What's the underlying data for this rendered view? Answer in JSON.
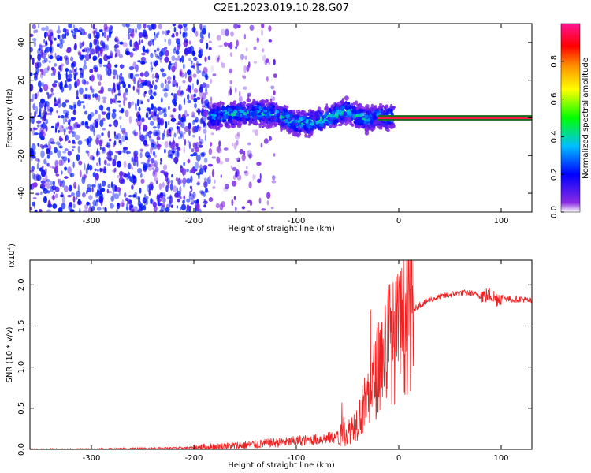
{
  "title": "C2E1.2023.019.10.28.G07",
  "chart_data": [
    {
      "type": "heatmap",
      "xlabel": "Height of straight line (km)",
      "ylabel": "Frequency (Hz)",
      "xlim": [
        -360,
        130
      ],
      "ylim": [
        -50,
        50
      ],
      "xticks": [
        -300,
        -200,
        -100,
        0,
        100
      ],
      "yticks": [
        -40,
        -20,
        0,
        20,
        40
      ],
      "colorbar": {
        "label": "Normalized spectral amplitude",
        "range": [
          0,
          1
        ],
        "ticks": [
          0.0,
          0.2,
          0.4,
          0.6,
          0.8
        ],
        "colors": [
          "#ffffff",
          "#8a2be2",
          "#0000ff",
          "#00bfff",
          "#00ff00",
          "#ffff00",
          "#ff8c00",
          "#ff0000",
          "#ff1493"
        ]
      },
      "regions": [
        {
          "x": [
            -360,
            -185
          ],
          "y": [
            -50,
            50
          ],
          "amplitude": 0.12,
          "pattern": "scattered noise"
        },
        {
          "x": [
            -185,
            -120
          ],
          "y": [
            -50,
            50
          ],
          "amplitude": 0.04,
          "pattern": "sparse noise"
        },
        {
          "x": [
            -185,
            -5
          ],
          "y": [
            -6,
            8
          ],
          "amplitude": 0.45,
          "pattern": "signal band"
        },
        {
          "x": [
            -20,
            130
          ],
          "y": [
            -1,
            1
          ],
          "amplitude": 0.9,
          "pattern": "carrier line"
        }
      ],
      "ridge": {
        "x": [
          -185,
          -160,
          -140,
          -120,
          -100,
          -80,
          -60,
          -50,
          -40,
          -30,
          -20,
          -10,
          0,
          10,
          130
        ],
        "y": [
          1,
          2,
          3,
          2,
          -3,
          -2,
          2,
          4,
          1,
          -1,
          1,
          0,
          1,
          0,
          0
        ]
      }
    },
    {
      "type": "line",
      "xlabel": "Height of straight line (km)",
      "ylabel": "SNR (10 * v/v)",
      "yscale_label": "(x10",
      "yscale_exp": "4",
      "yscale_close": ")",
      "xlim": [
        -360,
        130
      ],
      "ylim": [
        0,
        2.3
      ],
      "xticks": [
        -300,
        -200,
        -100,
        0,
        100
      ],
      "yticks": [
        "0.0",
        "0.5",
        "1.0",
        "1.5",
        "2.0"
      ],
      "color": "#ee2222",
      "x": [
        -360,
        -300,
        -250,
        -200,
        -180,
        -150,
        -120,
        -100,
        -80,
        -60,
        -50,
        -40,
        -35,
        -30,
        -25,
        -20,
        -15,
        -12,
        -10,
        -5,
        0,
        5,
        10,
        15,
        20,
        25,
        30,
        40,
        50,
        60,
        70,
        80,
        90,
        95,
        100,
        110,
        120,
        130
      ],
      "y": [
        0.0,
        0.0,
        0.01,
        0.02,
        0.03,
        0.05,
        0.08,
        0.1,
        0.12,
        0.15,
        0.2,
        0.35,
        0.5,
        0.65,
        0.8,
        1.0,
        1.15,
        1.25,
        1.35,
        1.3,
        1.4,
        1.5,
        1.6,
        1.7,
        1.75,
        1.78,
        1.82,
        1.85,
        1.88,
        1.9,
        1.9,
        1.87,
        1.88,
        1.83,
        1.85,
        1.82,
        1.83,
        1.8
      ]
    }
  ]
}
